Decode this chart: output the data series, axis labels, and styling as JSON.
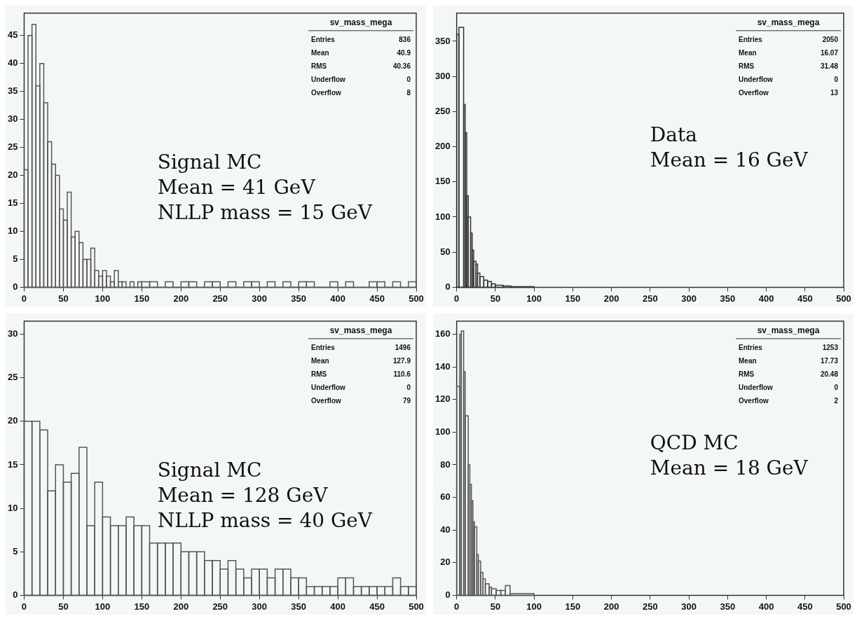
{
  "chart_data": [
    {
      "type": "histogram",
      "color": "#555555",
      "bins": [
        0,
        5,
        10,
        15,
        20,
        25,
        30,
        35,
        40,
        45,
        50,
        55,
        60,
        65,
        70,
        75,
        80,
        85,
        90,
        95,
        100,
        105,
        110,
        115,
        120,
        125,
        130,
        135,
        140,
        145,
        150,
        160,
        170,
        180,
        190,
        200,
        210,
        220,
        230,
        240,
        250,
        260,
        270,
        280,
        290,
        300,
        310,
        320,
        330,
        340,
        350,
        360,
        370,
        380,
        390,
        400,
        410,
        420,
        430,
        440,
        450,
        460,
        470,
        480,
        490,
        500
      ],
      "values": [
        21,
        45,
        47,
        36,
        40,
        33,
        26,
        22,
        20,
        14,
        12,
        17,
        9,
        10,
        8,
        5,
        5,
        7,
        3,
        2,
        3,
        2,
        1,
        3,
        1,
        1,
        0,
        1,
        0,
        1,
        1,
        1,
        0,
        1,
        0,
        1,
        1,
        0,
        1,
        1,
        0,
        1,
        0,
        1,
        1,
        0,
        1,
        0,
        1,
        0,
        1,
        1,
        0,
        0,
        1,
        0,
        1,
        0,
        0,
        1,
        1,
        0,
        1,
        0,
        1
      ],
      "xlim": [
        0,
        500
      ],
      "xticks": [
        0,
        50,
        100,
        150,
        200,
        250,
        300,
        350,
        400,
        450,
        500
      ],
      "ylim": [
        0,
        49
      ],
      "yticks": [
        0,
        5,
        10,
        15,
        20,
        25,
        30,
        35,
        40,
        45
      ],
      "annotations": [
        "sv_mass_mega",
        "Entries",
        "836",
        "Mean",
        "40.9",
        "RMS",
        "40.36",
        "Underflow",
        "0",
        "Overflow",
        "8",
        "Signal MC",
        "Mean = 41 GeV",
        "NLLP mass = 15 GeV"
      ]
    },
    {
      "type": "histogram",
      "color": "#333333",
      "bins": [
        0,
        3,
        9,
        11,
        13,
        15,
        18,
        20,
        22,
        25,
        27,
        30,
        35,
        40,
        45,
        50,
        60,
        70,
        100
      ],
      "values": [
        360,
        370,
        260,
        220,
        130,
        100,
        77,
        53,
        37,
        33,
        20,
        15,
        10,
        8,
        5,
        3,
        2,
        1
      ],
      "xlim": [
        0,
        500
      ],
      "xticks": [
        0,
        50,
        100,
        150,
        200,
        250,
        300,
        350,
        400,
        450,
        500
      ],
      "ylim": [
        0,
        390
      ],
      "yticks": [
        0,
        50,
        100,
        150,
        200,
        250,
        300,
        350
      ],
      "annotations": [
        "sv_mass_mega",
        "Entries",
        "2050",
        "Mean",
        "16.07",
        "RMS",
        "31.48",
        "Underflow",
        "0",
        "Overflow",
        "13",
        "Data",
        "Mean = 16 GeV"
      ]
    },
    {
      "type": "histogram",
      "color": "#555555",
      "bins": [
        0,
        10,
        20,
        30,
        40,
        50,
        60,
        70,
        80,
        90,
        100,
        110,
        120,
        130,
        140,
        150,
        160,
        170,
        180,
        190,
        200,
        210,
        220,
        230,
        240,
        250,
        260,
        270,
        280,
        290,
        300,
        310,
        320,
        330,
        340,
        350,
        360,
        370,
        380,
        390,
        400,
        410,
        420,
        430,
        440,
        450,
        460,
        470,
        480,
        490,
        500
      ],
      "values": [
        20,
        20,
        19,
        12,
        15,
        13,
        14,
        17,
        8,
        13,
        9,
        8,
        8,
        9,
        8,
        8,
        6,
        6,
        6,
        6,
        5,
        5,
        5,
        4,
        4,
        3,
        4,
        3,
        2,
        3,
        3,
        2,
        3,
        3,
        2,
        2,
        1,
        1,
        1,
        1,
        2,
        2,
        1,
        1,
        1,
        1,
        1,
        2,
        1,
        1
      ],
      "xlim": [
        0,
        500
      ],
      "xticks": [
        0,
        50,
        100,
        150,
        200,
        250,
        300,
        350,
        400,
        450,
        500
      ],
      "ylim": [
        0,
        31.5
      ],
      "yticks": [
        0,
        5,
        10,
        15,
        20,
        25,
        30
      ],
      "annotations": [
        "sv_mass_mega",
        "Entries",
        "1496",
        "Mean",
        "127.9",
        "RMS",
        "110.6",
        "Underflow",
        "0",
        "Overflow",
        "79",
        "Signal MC",
        "Mean = 128 GeV",
        "NLLP mass = 40 GeV"
      ]
    },
    {
      "type": "histogram",
      "color": "#555555",
      "bins": [
        0,
        4,
        6,
        9,
        11,
        15,
        17,
        19,
        21,
        23,
        26,
        28,
        31,
        34,
        37,
        42,
        45,
        51,
        57,
        63,
        69,
        100
      ],
      "values": [
        128,
        160,
        162,
        137,
        110,
        80,
        68,
        58,
        45,
        42,
        25,
        21,
        14,
        10,
        7,
        5,
        4,
        3,
        3,
        6,
        1
      ],
      "xlim": [
        0,
        500
      ],
      "xticks": [
        0,
        50,
        100,
        150,
        200,
        250,
        300,
        350,
        400,
        450,
        500
      ],
      "ylim": [
        0,
        168
      ],
      "yticks": [
        0,
        20,
        40,
        60,
        80,
        100,
        120,
        140,
        160
      ],
      "annotations": [
        "sv_mass_mega",
        "Entries",
        "1253",
        "Mean",
        "17.73",
        "RMS",
        "20.48",
        "Underflow",
        "0",
        "Overflow",
        "2",
        "QCD MC",
        "Mean = 18 GeV"
      ]
    }
  ]
}
